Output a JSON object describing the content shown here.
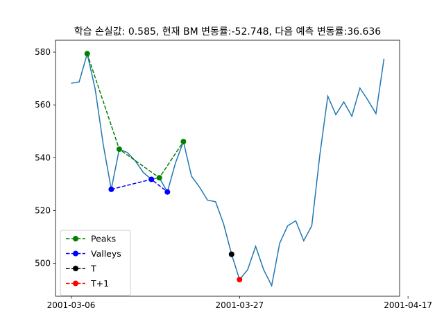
{
  "chart_data": {
    "type": "line",
    "title": "학습 손실값: 0.585, 현재 BM 변동률:-52.748, 다음 예측 변동률:36.636",
    "xlabel": "",
    "ylabel": "",
    "x_tick_labels": [
      "2001-03-06",
      "2001-03-27",
      "2001-04-17"
    ],
    "y_ticks": [
      500,
      520,
      540,
      560,
      580
    ],
    "ylim": [
      487.5,
      584.5
    ],
    "grid": false,
    "legend_position": "lower-left",
    "series": [
      {
        "name": "",
        "color": "#1f77b4",
        "style": "solid",
        "points": [
          [
            "2001-03-06",
            568.2
          ],
          [
            "2001-03-07",
            568.7
          ],
          [
            "2001-03-08",
            579.4
          ],
          [
            "2001-03-09",
            566.0
          ],
          [
            "2001-03-10",
            545.0
          ],
          [
            "2001-03-11",
            528.0
          ],
          [
            "2001-03-12",
            543.2
          ],
          [
            "2001-03-13",
            542.0
          ],
          [
            "2001-03-14",
            538.8
          ],
          [
            "2001-03-15",
            534.4
          ],
          [
            "2001-03-16",
            531.8
          ],
          [
            "2001-03-17",
            532.4
          ],
          [
            "2001-03-18",
            527.0
          ],
          [
            "2001-03-19",
            537.9
          ],
          [
            "2001-03-20",
            546.1
          ],
          [
            "2001-03-21",
            533.0
          ],
          [
            "2001-03-22",
            528.9
          ],
          [
            "2001-03-23",
            523.9
          ],
          [
            "2001-03-24",
            523.3
          ],
          [
            "2001-03-25",
            515.0
          ],
          [
            "2001-03-26",
            503.4
          ],
          [
            "2001-03-27",
            493.8
          ],
          [
            "2001-03-28",
            497.5
          ],
          [
            "2001-03-29",
            506.4
          ],
          [
            "2001-03-30",
            497.6
          ],
          [
            "2001-03-31",
            491.5
          ],
          [
            "2001-04-01",
            507.6
          ],
          [
            "2001-04-02",
            514.2
          ],
          [
            "2001-04-03",
            516.1
          ],
          [
            "2001-04-04",
            508.5
          ],
          [
            "2001-04-05",
            514.2
          ],
          [
            "2001-04-06",
            541.0
          ],
          [
            "2001-04-07",
            563.3
          ],
          [
            "2001-04-08",
            556.3
          ],
          [
            "2001-04-09",
            561.1
          ],
          [
            "2001-04-10",
            555.7
          ],
          [
            "2001-04-11",
            566.4
          ],
          [
            "2001-04-12",
            561.8
          ],
          [
            "2001-04-13",
            556.7
          ],
          [
            "2001-04-14",
            577.5
          ]
        ]
      },
      {
        "name": "Peaks",
        "color": "#008000",
        "style": "dashed",
        "points": [
          [
            "2001-03-08",
            579.4
          ],
          [
            "2001-03-12",
            543.2
          ],
          [
            "2001-03-17",
            532.4
          ],
          [
            "2001-03-20",
            546.1
          ]
        ]
      },
      {
        "name": "Valleys",
        "color": "#0000ff",
        "style": "dashed",
        "points": [
          [
            "2001-03-11",
            528.0
          ],
          [
            "2001-03-16",
            531.8
          ],
          [
            "2001-03-18",
            527.0
          ]
        ]
      },
      {
        "name": "T",
        "color": "#000000",
        "style": "dashed",
        "points": [
          [
            "2001-03-26",
            503.4
          ]
        ]
      },
      {
        "name": "T+1",
        "color": "#ff0000",
        "style": "dashed",
        "points": [
          [
            "2001-03-27",
            493.8
          ]
        ]
      }
    ]
  }
}
